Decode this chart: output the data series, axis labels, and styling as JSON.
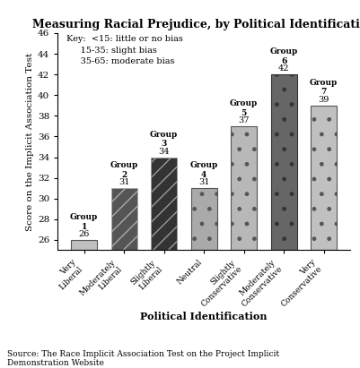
{
  "title": "Measuring Racial Prejudice, by Political Identification",
  "xlabel": "Political Identification",
  "ylabel": "Score on the Implicit Association Test",
  "categories": [
    "Very\nLiberal",
    "Moderately\nLiberal",
    "Slightly\nLiberal",
    "Neutral",
    "Slightly\nConservative",
    "Moderately\nConservative",
    "Very\nConservative"
  ],
  "group_labels": [
    "Group\n1",
    "Group\n2",
    "Group\n3",
    "Group\n4",
    "Group\n5",
    "Group\n6",
    "Group\n7"
  ],
  "values": [
    26,
    31,
    34,
    31,
    37,
    42,
    39
  ],
  "ylim": [
    25,
    46
  ],
  "yticks": [
    26,
    28,
    30,
    32,
    34,
    36,
    38,
    40,
    42,
    44,
    46
  ],
  "key_text": "Key:  <15: little or no bias\n     15-35: slight bias\n     35-65: moderate bias",
  "source_text": "Source: The Race Implicit Association Test on the Project Implicit\nDemonstration Website",
  "background_color": "#ffffff",
  "title_fontsize": 9,
  "axis_fontsize": 8,
  "tick_fontsize": 7.5
}
